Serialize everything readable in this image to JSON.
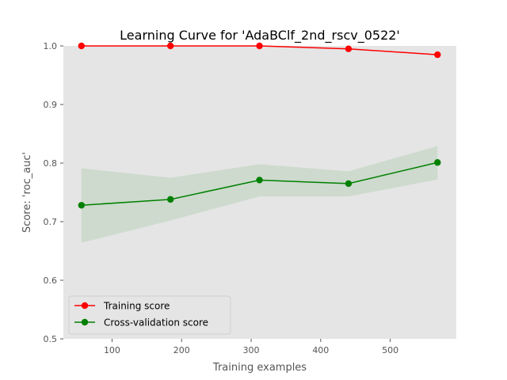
{
  "chart_data": {
    "type": "line",
    "title": "Learning Curve for 'AdaBClf_2nd_rscv_0522'",
    "xlabel": "Training examples",
    "ylabel": "Score: 'roc_auc'",
    "xlim": [
      30,
      595
    ],
    "ylim": [
      0.5,
      1.0
    ],
    "xticks": [
      100,
      200,
      300,
      400,
      500
    ],
    "yticks": [
      0.5,
      0.6,
      0.7,
      0.8,
      0.9,
      1.0
    ],
    "grid": false,
    "legend_position": "lower-left",
    "x": [
      56,
      184,
      312,
      440,
      568
    ],
    "series": [
      {
        "name": "Training score",
        "color": "#ff0000",
        "values": [
          1.0,
          1.0,
          1.0,
          0.995,
          0.985
        ],
        "band_lower": [
          1.0,
          1.0,
          1.0,
          0.995,
          0.985
        ],
        "band_upper": [
          1.0,
          1.0,
          1.0,
          0.995,
          0.985
        ]
      },
      {
        "name": "Cross-validation score",
        "color": "#008000",
        "values": [
          0.728,
          0.738,
          0.771,
          0.765,
          0.801
        ],
        "band_lower": [
          0.664,
          0.702,
          0.743,
          0.743,
          0.772
        ],
        "band_upper": [
          0.791,
          0.775,
          0.798,
          0.786,
          0.829
        ]
      }
    ]
  }
}
